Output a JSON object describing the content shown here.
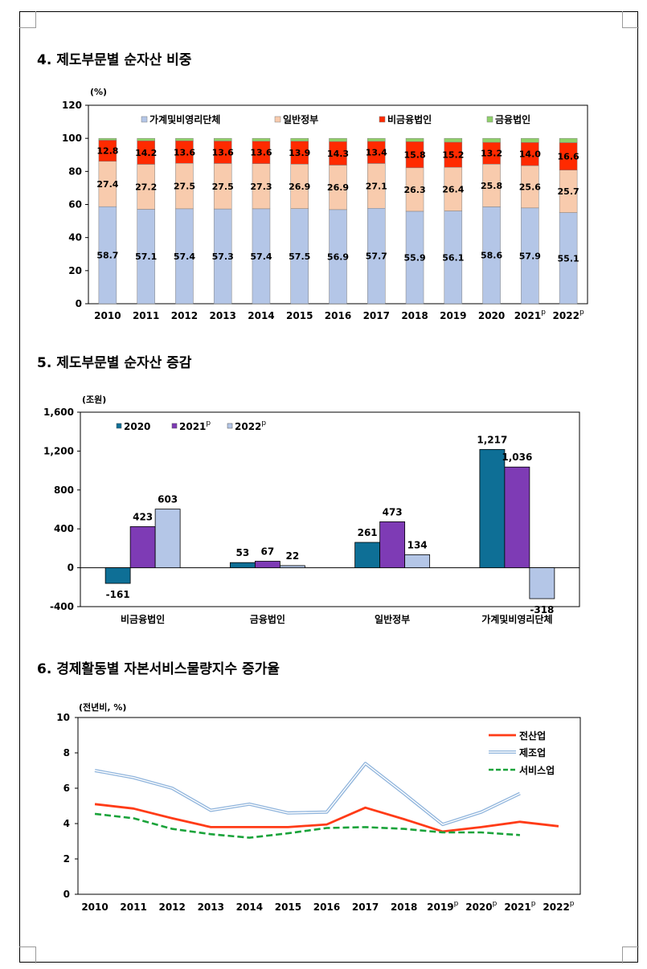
{
  "sections": {
    "s4_title": "4. 제도부문별 순자산 비중",
    "s5_title": "5. 제도부문별 순자산 증감",
    "s6_title": "6. 경제활동별 자본서비스물량지수 증가율"
  },
  "chart_data": [
    {
      "type": "bar",
      "stacked": true,
      "unit_label": "(%)",
      "ylim": [
        0,
        120
      ],
      "yticks": [
        0,
        20,
        40,
        60,
        80,
        100,
        120
      ],
      "legend_position": "top",
      "categories": [
        "2010",
        "2011",
        "2012",
        "2013",
        "2014",
        "2015",
        "2016",
        "2017",
        "2018",
        "2019",
        "2020",
        "2021",
        "2022"
      ],
      "category_superscripts": [
        "",
        "",
        "",
        "",
        "",
        "",
        "",
        "",
        "",
        "",
        "",
        "p",
        "p"
      ],
      "series": [
        {
          "name": "가계및비영리단체",
          "color": "#b4c6e7",
          "values": [
            58.7,
            57.1,
            57.4,
            57.3,
            57.4,
            57.5,
            56.9,
            57.7,
            55.9,
            56.1,
            58.6,
            57.9,
            55.1
          ]
        },
        {
          "name": "일반정부",
          "color": "#f8cbad",
          "values": [
            27.4,
            27.2,
            27.5,
            27.5,
            27.3,
            26.9,
            26.9,
            27.1,
            26.3,
            26.4,
            25.8,
            25.6,
            25.7
          ]
        },
        {
          "name": "비금융법인",
          "color": "#ff2a00",
          "values": [
            12.8,
            14.2,
            13.6,
            13.6,
            13.6,
            13.9,
            14.3,
            13.4,
            15.8,
            15.2,
            13.2,
            14.0,
            16.6
          ]
        },
        {
          "name": "금융법인",
          "color": "#8fd16a",
          "values": [
            1.1,
            1.5,
            1.5,
            1.6,
            1.7,
            1.7,
            1.9,
            1.8,
            2.0,
            2.3,
            2.4,
            2.5,
            2.6
          ]
        }
      ],
      "labeled_series": [
        "가계및비영리단체",
        "일반정부",
        "비금융법인"
      ]
    },
    {
      "type": "bar",
      "unit_label": "(조원)",
      "ylim": [
        -400,
        1600
      ],
      "yticks": [
        -400,
        0,
        400,
        800,
        1200,
        1600
      ],
      "ytick_labels": [
        "-400",
        "0",
        "400",
        "800",
        "1,200",
        "1,600"
      ],
      "legend_position": "top-left",
      "categories": [
        "비금융법인",
        "금융법인",
        "일반정부",
        "가계및비영리단체"
      ],
      "series": [
        {
          "name": "2020",
          "sup": "",
          "color": "#0e6f96",
          "values": [
            -161,
            53,
            261,
            1217
          ],
          "labels": [
            "-161",
            "53",
            "261",
            "1,217"
          ]
        },
        {
          "name": "2021",
          "sup": "p",
          "color": "#7e3bb5",
          "values": [
            423,
            67,
            473,
            1036
          ],
          "labels": [
            "423",
            "67",
            "473",
            "1,036"
          ]
        },
        {
          "name": "2022",
          "sup": "p",
          "color": "#b4c6e7",
          "values": [
            603,
            22,
            134,
            -318
          ],
          "labels": [
            "603",
            "22",
            "134",
            "-318"
          ]
        }
      ]
    },
    {
      "type": "line",
      "unit_label": "(전년비, %)",
      "ylim": [
        0,
        10
      ],
      "yticks": [
        0,
        2,
        4,
        6,
        8,
        10
      ],
      "legend_position": "top-right",
      "x": [
        "2010",
        "2011",
        "2012",
        "2013",
        "2014",
        "2015",
        "2016",
        "2017",
        "2018",
        "2019",
        "2020",
        "2021",
        "2022"
      ],
      "x_superscripts": [
        "",
        "",
        "",
        "",
        "",
        "",
        "",
        "",
        "",
        "p",
        "p",
        "p",
        "p"
      ],
      "series": [
        {
          "name": "전산업",
          "style": "solid",
          "color": "#ff3b17",
          "values": [
            5.1,
            4.85,
            4.3,
            3.8,
            3.8,
            3.8,
            3.95,
            4.9,
            4.25,
            3.55,
            3.8,
            4.1,
            3.85
          ]
        },
        {
          "name": "제조업",
          "style": "double",
          "color": "#8fb4dc",
          "values": [
            7.0,
            6.6,
            6.0,
            4.75,
            5.1,
            4.6,
            4.65,
            7.4,
            5.7,
            3.95,
            4.65,
            5.7,
            null
          ]
        },
        {
          "name": "서비스업",
          "style": "dashed",
          "color": "#1aa33a",
          "values": [
            4.55,
            4.3,
            3.7,
            3.4,
            3.2,
            3.45,
            3.75,
            3.8,
            3.7,
            3.5,
            3.5,
            3.35,
            null
          ]
        }
      ]
    }
  ]
}
